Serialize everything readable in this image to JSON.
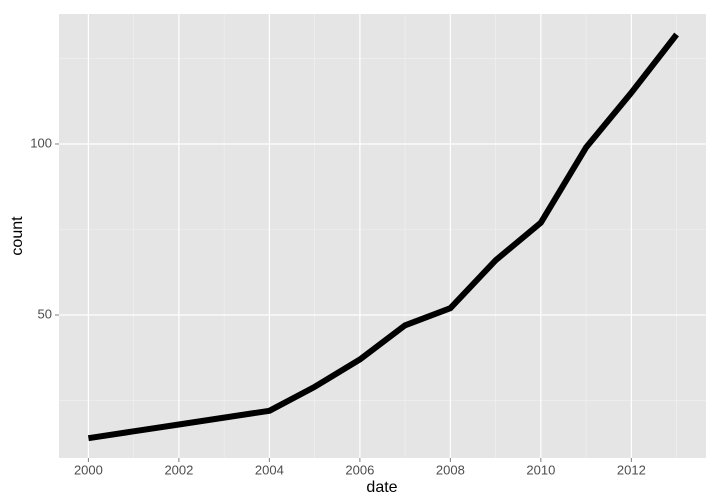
{
  "chart_data": {
    "type": "line",
    "x_label": "date",
    "y_label": "count",
    "x": [
      2000,
      2001,
      2002,
      2003,
      2004,
      2005,
      2006,
      2007,
      2008,
      2009,
      2010,
      2011,
      2012,
      2013
    ],
    "values": [
      14,
      16,
      18,
      20,
      22,
      29,
      37,
      47,
      52,
      66,
      77,
      99,
      115,
      132
    ],
    "color": "#000000",
    "xlim": [
      1999.35,
      2013.65
    ],
    "xticks": [
      2000,
      2002,
      2004,
      2006,
      2008,
      2010,
      2012
    ],
    "xminor": [
      2001,
      2003,
      2005,
      2007,
      2009,
      2011,
      2013
    ],
    "ylim": [
      8.2,
      138
    ],
    "yticks": [
      50,
      100
    ],
    "yminor": [
      25,
      75,
      125
    ],
    "grid": true
  }
}
